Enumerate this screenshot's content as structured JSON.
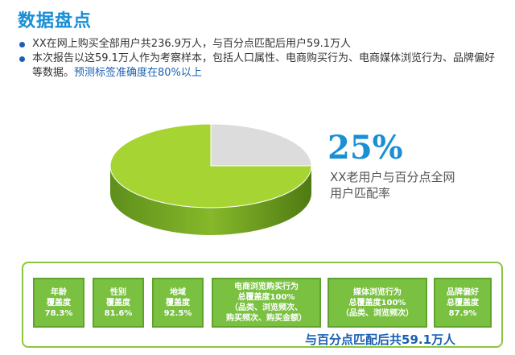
{
  "title": "数据盘点",
  "bullets": [
    "XX在网上购买全部用户共236.9万人，与百分点匹配后用户59.1万人",
    "本次报告以这59.1万人作为考察样本，包括人口属性、电商购买行为、电商媒体浏览行为、品牌偏好等数据。"
  ],
  "bullet2_highlight": "预测标签准确度在80%以上",
  "highlight": {
    "percent": "25%",
    "caption_line1": "XX老用户与百分点全网",
    "caption_line2": "用户匹配率"
  },
  "chart_data": {
    "type": "pie",
    "slices": [
      {
        "value": 25,
        "color": "#dcdcdc"
      },
      {
        "value": 75,
        "color": "#a6d432"
      }
    ]
  },
  "coverage_boxes": [
    {
      "lines": [
        "年龄",
        "覆盖度",
        "78.3%"
      ]
    },
    {
      "lines": [
        "性别",
        "覆盖度",
        "81.6%"
      ]
    },
    {
      "lines": [
        "地域",
        "覆盖度",
        "92.5%"
      ]
    },
    {
      "lines": [
        "电商浏览购买行为",
        "总覆盖度100%",
        "（品类、浏览频次、",
        "购买频次、购买金额）"
      ]
    },
    {
      "lines": [
        "媒体浏览行为",
        "总覆盖度100%",
        "（品类、浏览频次）"
      ]
    },
    {
      "lines": [
        "品牌偏好",
        "总覆盖度",
        "87.9%"
      ]
    }
  ],
  "footer": "与百分点匹配后共59.1万人",
  "colors": {
    "title_blue": "#1a8fd4",
    "accent_green": "#8cc63f",
    "box_green": "#7ac142"
  }
}
